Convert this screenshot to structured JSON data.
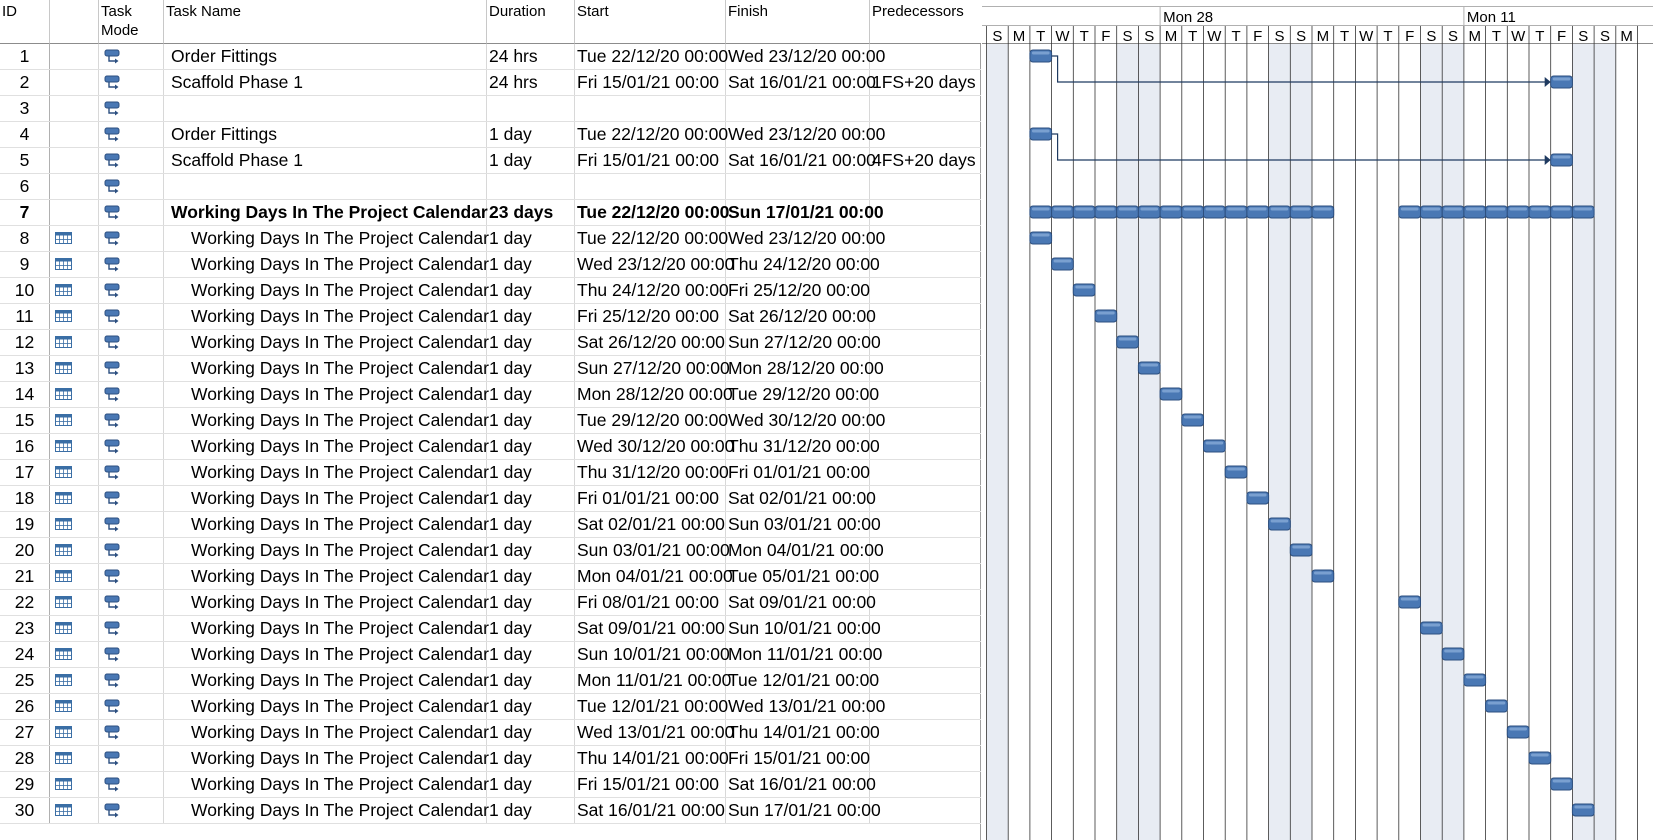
{
  "columns": {
    "id": "ID",
    "mode": "Task Mode",
    "name": "Task Name",
    "duration": "Duration",
    "start": "Start",
    "finish": "Finish",
    "predecessors": "Predecessors"
  },
  "timescale": {
    "weeks": [
      "Mon 28",
      "Mon 11"
    ],
    "days": [
      "S",
      "M",
      "T",
      "W",
      "T",
      "F",
      "S",
      "S",
      "M",
      "T",
      "W",
      "T",
      "F",
      "S",
      "S",
      "M",
      "T",
      "W",
      "T",
      "F",
      "S",
      "S",
      "M",
      "T",
      "W",
      "T",
      "F",
      "S",
      "S",
      "M"
    ]
  },
  "icons": {
    "mode": "auto-scheduled-task-icon",
    "calendar": "task-calendar-icon"
  },
  "colors": {
    "bar": "#4a78b4",
    "bar_dark": "#2c4f80",
    "weekend_shade": "#e8ecf3",
    "link": "#1f3a60"
  },
  "rows": [
    {
      "id": "1",
      "cal": false,
      "name": "Order Fittings",
      "duration": "24 hrs",
      "start": "Tue 22/12/20 00:00",
      "finish": "Wed 23/12/20 00:00",
      "pred": "",
      "bold": false,
      "sub": false,
      "bar": [
        2,
        3
      ]
    },
    {
      "id": "2",
      "cal": false,
      "name": "Scaffold Phase 1",
      "duration": "24 hrs",
      "start": "Fri 15/01/21 00:00",
      "finish": "Sat 16/01/21 00:00",
      "pred": "1FS+20 days",
      "bold": false,
      "sub": false,
      "bar": [
        26,
        27
      ]
    },
    {
      "id": "3",
      "cal": false,
      "name": "",
      "duration": "",
      "start": "",
      "finish": "",
      "pred": "",
      "bold": false,
      "sub": false,
      "bar": null
    },
    {
      "id": "4",
      "cal": false,
      "name": "Order Fittings",
      "duration": "1 day",
      "start": "Tue 22/12/20 00:00",
      "finish": "Wed 23/12/20 00:00",
      "pred": "",
      "bold": false,
      "sub": false,
      "bar": [
        2,
        3
      ]
    },
    {
      "id": "5",
      "cal": false,
      "name": "Scaffold Phase 1",
      "duration": "1 day",
      "start": "Fri 15/01/21 00:00",
      "finish": "Sat 16/01/21 00:00",
      "pred": "4FS+20 days",
      "bold": false,
      "sub": false,
      "bar": [
        26,
        27
      ]
    },
    {
      "id": "6",
      "cal": false,
      "name": "",
      "duration": "",
      "start": "",
      "finish": "",
      "pred": "",
      "bold": false,
      "sub": false,
      "bar": null
    },
    {
      "id": "7",
      "cal": false,
      "name": "Working Days In The Project Calendar",
      "duration": "23 days",
      "start": "Tue 22/12/20 00:00",
      "finish": "Sun 17/01/21 00:00",
      "pred": "",
      "bold": true,
      "sub": false,
      "bar": null
    },
    {
      "id": "8",
      "cal": true,
      "name": "Working Days In The Project Calendar",
      "duration": "1 day",
      "start": "Tue 22/12/20 00:00",
      "finish": "Wed 23/12/20 00:00",
      "pred": "",
      "bold": false,
      "sub": true,
      "bar": [
        2,
        3
      ]
    },
    {
      "id": "9",
      "cal": true,
      "name": "Working Days In The Project Calendar",
      "duration": "1 day",
      "start": "Wed 23/12/20 00:00",
      "finish": "Thu 24/12/20 00:00",
      "pred": "",
      "bold": false,
      "sub": true,
      "bar": [
        3,
        4
      ]
    },
    {
      "id": "10",
      "cal": true,
      "name": "Working Days In The Project Calendar",
      "duration": "1 day",
      "start": "Thu 24/12/20 00:00",
      "finish": "Fri 25/12/20 00:00",
      "pred": "",
      "bold": false,
      "sub": true,
      "bar": [
        4,
        5
      ]
    },
    {
      "id": "11",
      "cal": true,
      "name": "Working Days In The Project Calendar",
      "duration": "1 day",
      "start": "Fri 25/12/20 00:00",
      "finish": "Sat 26/12/20 00:00",
      "pred": "",
      "bold": false,
      "sub": true,
      "bar": [
        5,
        6
      ]
    },
    {
      "id": "12",
      "cal": true,
      "name": "Working Days In The Project Calendar",
      "duration": "1 day",
      "start": "Sat 26/12/20 00:00",
      "finish": "Sun 27/12/20 00:00",
      "pred": "",
      "bold": false,
      "sub": true,
      "bar": [
        6,
        7
      ]
    },
    {
      "id": "13",
      "cal": true,
      "name": "Working Days In The Project Calendar",
      "duration": "1 day",
      "start": "Sun 27/12/20 00:00",
      "finish": "Mon 28/12/20 00:00",
      "pred": "",
      "bold": false,
      "sub": true,
      "bar": [
        7,
        8
      ]
    },
    {
      "id": "14",
      "cal": true,
      "name": "Working Days In The Project Calendar",
      "duration": "1 day",
      "start": "Mon 28/12/20 00:00",
      "finish": "Tue 29/12/20 00:00",
      "pred": "",
      "bold": false,
      "sub": true,
      "bar": [
        8,
        9
      ]
    },
    {
      "id": "15",
      "cal": true,
      "name": "Working Days In The Project Calendar",
      "duration": "1 day",
      "start": "Tue 29/12/20 00:00",
      "finish": "Wed 30/12/20 00:00",
      "pred": "",
      "bold": false,
      "sub": true,
      "bar": [
        9,
        10
      ]
    },
    {
      "id": "16",
      "cal": true,
      "name": "Working Days In The Project Calendar",
      "duration": "1 day",
      "start": "Wed 30/12/20 00:00",
      "finish": "Thu 31/12/20 00:00",
      "pred": "",
      "bold": false,
      "sub": true,
      "bar": [
        10,
        11
      ]
    },
    {
      "id": "17",
      "cal": true,
      "name": "Working Days In The Project Calendar",
      "duration": "1 day",
      "start": "Thu 31/12/20 00:00",
      "finish": "Fri 01/01/21 00:00",
      "pred": "",
      "bold": false,
      "sub": true,
      "bar": [
        11,
        12
      ]
    },
    {
      "id": "18",
      "cal": true,
      "name": "Working Days In The Project Calendar",
      "duration": "1 day",
      "start": "Fri 01/01/21 00:00",
      "finish": "Sat 02/01/21 00:00",
      "pred": "",
      "bold": false,
      "sub": true,
      "bar": [
        12,
        13
      ]
    },
    {
      "id": "19",
      "cal": true,
      "name": "Working Days In The Project Calendar",
      "duration": "1 day",
      "start": "Sat 02/01/21 00:00",
      "finish": "Sun 03/01/21 00:00",
      "pred": "",
      "bold": false,
      "sub": true,
      "bar": [
        13,
        14
      ]
    },
    {
      "id": "20",
      "cal": true,
      "name": "Working Days In The Project Calendar",
      "duration": "1 day",
      "start": "Sun 03/01/21 00:00",
      "finish": "Mon 04/01/21 00:00",
      "pred": "",
      "bold": false,
      "sub": true,
      "bar": [
        14,
        15
      ]
    },
    {
      "id": "21",
      "cal": true,
      "name": "Working Days In The Project Calendar",
      "duration": "1 day",
      "start": "Mon 04/01/21 00:00",
      "finish": "Tue 05/01/21 00:00",
      "pred": "",
      "bold": false,
      "sub": true,
      "bar": [
        15,
        16
      ]
    },
    {
      "id": "22",
      "cal": true,
      "name": "Working Days In The Project Calendar",
      "duration": "1 day",
      "start": "Fri 08/01/21 00:00",
      "finish": "Sat 09/01/21 00:00",
      "pred": "",
      "bold": false,
      "sub": true,
      "bar": [
        19,
        20
      ]
    },
    {
      "id": "23",
      "cal": true,
      "name": "Working Days In The Project Calendar",
      "duration": "1 day",
      "start": "Sat 09/01/21 00:00",
      "finish": "Sun 10/01/21 00:00",
      "pred": "",
      "bold": false,
      "sub": true,
      "bar": [
        20,
        21
      ]
    },
    {
      "id": "24",
      "cal": true,
      "name": "Working Days In The Project Calendar",
      "duration": "1 day",
      "start": "Sun 10/01/21 00:00",
      "finish": "Mon 11/01/21 00:00",
      "pred": "",
      "bold": false,
      "sub": true,
      "bar": [
        21,
        22
      ]
    },
    {
      "id": "25",
      "cal": true,
      "name": "Working Days In The Project Calendar",
      "duration": "1 day",
      "start": "Mon 11/01/21 00:00",
      "finish": "Tue 12/01/21 00:00",
      "pred": "",
      "bold": false,
      "sub": true,
      "bar": [
        22,
        23
      ]
    },
    {
      "id": "26",
      "cal": true,
      "name": "Working Days In The Project Calendar",
      "duration": "1 day",
      "start": "Tue 12/01/21 00:00",
      "finish": "Wed 13/01/21 00:00",
      "pred": "",
      "bold": false,
      "sub": true,
      "bar": [
        23,
        24
      ]
    },
    {
      "id": "27",
      "cal": true,
      "name": "Working Days In The Project Calendar",
      "duration": "1 day",
      "start": "Wed 13/01/21 00:00",
      "finish": "Thu 14/01/21 00:00",
      "pred": "",
      "bold": false,
      "sub": true,
      "bar": [
        24,
        25
      ]
    },
    {
      "id": "28",
      "cal": true,
      "name": "Working Days In The Project Calendar",
      "duration": "1 day",
      "start": "Thu 14/01/21 00:00",
      "finish": "Fri 15/01/21 00:00",
      "pred": "",
      "bold": false,
      "sub": true,
      "bar": [
        25,
        26
      ]
    },
    {
      "id": "29",
      "cal": true,
      "name": "Working Days In The Project Calendar",
      "duration": "1 day",
      "start": "Fri 15/01/21 00:00",
      "finish": "Sat 16/01/21 00:00",
      "pred": "",
      "bold": false,
      "sub": true,
      "bar": [
        26,
        27
      ]
    },
    {
      "id": "30",
      "cal": true,
      "name": "Working Days In The Project Calendar",
      "duration": "1 day",
      "start": "Sat 16/01/21 00:00",
      "finish": "Sun 17/01/21 00:00",
      "pred": "",
      "bold": false,
      "sub": true,
      "bar": [
        27,
        28
      ]
    }
  ],
  "summary_segments": [
    [
      2,
      16
    ],
    [
      19,
      28
    ]
  ],
  "links": [
    {
      "from_row": 0,
      "to_row": 1
    },
    {
      "from_row": 3,
      "to_row": 4
    }
  ]
}
